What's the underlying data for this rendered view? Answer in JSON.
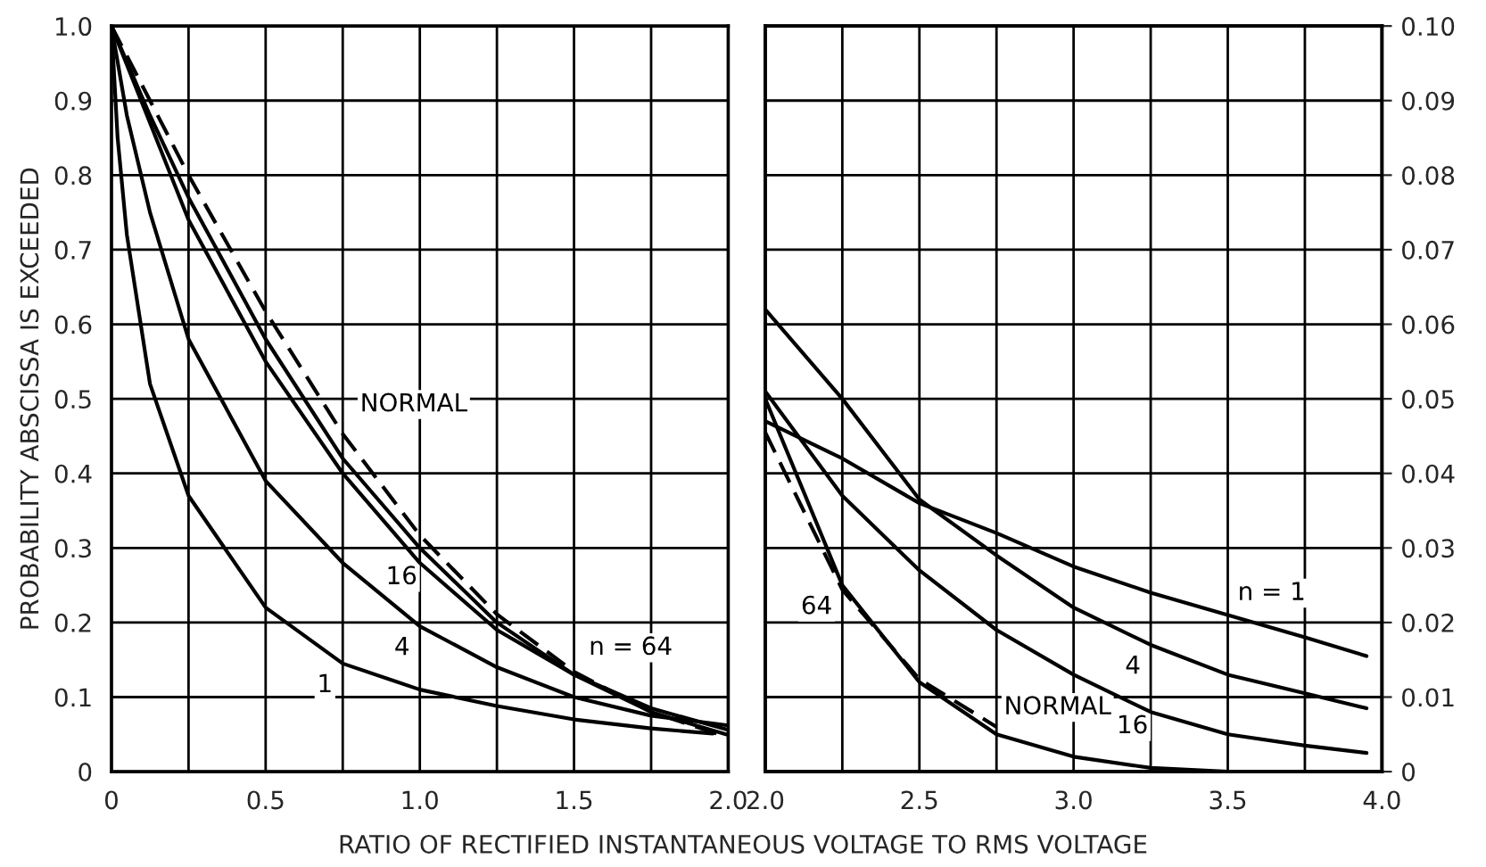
{
  "chart_data": [
    {
      "type": "line",
      "ylabel": "PROBABILITY ABSCISSA IS EXCEEDED",
      "xlabel": "RATIO OF RECTIFIED INSTANTANEOUS VOLTAGE TO RMS VOLTAGE",
      "xlim": [
        0,
        2
      ],
      "ylim": [
        0,
        1
      ],
      "xticks": [
        0,
        {
          "value": 0.25,
          "label": null
        },
        0.5,
        {
          "value": 0.75,
          "label": null
        },
        {
          "value": 1.0,
          "label": "1.0"
        },
        {
          "value": 1.25,
          "label": null
        },
        1.5,
        {
          "value": 1.75,
          "label": null
        },
        {
          "value": 2.0,
          "label": "2.0"
        }
      ],
      "yticks": [
        0,
        0.1,
        0.2,
        0.3,
        0.4,
        0.5,
        0.6,
        0.7,
        0.8,
        0.9,
        {
          "value": 1.0,
          "label": "1.0"
        }
      ],
      "grid": true,
      "series": [
        {
          "name": "1",
          "color": "#000000",
          "line_style": "solid",
          "x": [
            0,
            0.02,
            0.05,
            0.125,
            0.25,
            0.5,
            0.75,
            1.0,
            1.25,
            1.5,
            1.75,
            1.95
          ],
          "values": [
            1.0,
            0.85,
            0.72,
            0.52,
            0.37,
            0.22,
            0.145,
            0.11,
            0.088,
            0.07,
            0.058,
            0.051
          ]
        },
        {
          "name": "4",
          "color": "#000000",
          "line_style": "solid",
          "x": [
            0,
            0.05,
            0.125,
            0.25,
            0.5,
            0.75,
            1.0,
            1.25,
            1.5,
            1.75,
            2.0
          ],
          "values": [
            1.0,
            0.88,
            0.75,
            0.58,
            0.39,
            0.28,
            0.195,
            0.14,
            0.1,
            0.075,
            0.062
          ]
        },
        {
          "name": "16",
          "color": "#000000",
          "line_style": "solid",
          "x": [
            0,
            0.125,
            0.25,
            0.5,
            0.75,
            1.0,
            1.25,
            1.5,
            1.75,
            2.0
          ],
          "values": [
            1.0,
            0.87,
            0.74,
            0.55,
            0.4,
            0.28,
            0.19,
            0.13,
            0.085,
            0.056
          ]
        },
        {
          "name": "n = 64",
          "color": "#000000",
          "line_style": "solid",
          "x": [
            0,
            0.125,
            0.25,
            0.5,
            0.75,
            1.0,
            1.25,
            1.5,
            1.75,
            2.0
          ],
          "values": [
            1.0,
            0.88,
            0.77,
            0.58,
            0.42,
            0.3,
            0.2,
            0.13,
            0.08,
            0.049
          ]
        },
        {
          "name": "NORMAL",
          "color": "#000000",
          "line_style": "dashed",
          "x": [
            0,
            0.125,
            0.25,
            0.5,
            0.75,
            1.0,
            1.25,
            1.5,
            1.75,
            2.0
          ],
          "values": [
            1.0,
            0.9,
            0.8,
            0.617,
            0.453,
            0.317,
            0.211,
            0.134,
            0.08,
            0.046
          ]
        }
      ]
    },
    {
      "type": "line",
      "xlim": [
        2,
        4
      ],
      "y2lim": [
        0,
        0.1
      ],
      "xticks": [
        {
          "value": 2.0,
          "label": "2.0"
        },
        {
          "value": 2.25,
          "label": null
        },
        2.5,
        {
          "value": 2.75,
          "label": null
        },
        {
          "value": 3.0,
          "label": "3.0"
        },
        {
          "value": 3.25,
          "label": null
        },
        3.5,
        {
          "value": 3.75,
          "label": null
        },
        {
          "value": 4.0,
          "label": "4.0"
        }
      ],
      "y2ticks": [
        0,
        0.01,
        0.02,
        0.03,
        0.04,
        0.05,
        0.06,
        0.07,
        0.08,
        0.09,
        {
          "value": 0.1,
          "label": "0.10"
        }
      ],
      "grid": true,
      "series": [
        {
          "name": "n = 1",
          "axis": "y2",
          "color": "#000000",
          "line_style": "solid",
          "x": [
            2.0,
            2.25,
            2.5,
            2.75,
            3.0,
            3.25,
            3.5,
            3.75,
            3.95
          ],
          "values": [
            0.047,
            0.042,
            0.036,
            0.032,
            0.0275,
            0.024,
            0.021,
            0.018,
            0.0155
          ]
        },
        {
          "name": "4",
          "axis": "y2",
          "color": "#000000",
          "line_style": "solid",
          "x": [
            2.0,
            2.25,
            2.5,
            2.75,
            3.0,
            3.25,
            3.5,
            3.75,
            3.95
          ],
          "values": [
            0.062,
            0.05,
            0.0365,
            0.029,
            0.022,
            0.017,
            0.013,
            0.0105,
            0.0085
          ]
        },
        {
          "name": "16",
          "axis": "y2",
          "color": "#000000",
          "line_style": "solid",
          "x": [
            2.0,
            2.25,
            2.5,
            2.75,
            3.0,
            3.25,
            3.5,
            3.75,
            3.95
          ],
          "values": [
            0.051,
            0.037,
            0.027,
            0.019,
            0.013,
            0.008,
            0.005,
            0.0035,
            0.0025
          ]
        },
        {
          "name": "64",
          "axis": "y2",
          "color": "#000000",
          "line_style": "solid",
          "x": [
            2.0,
            2.25,
            2.5,
            2.75,
            3.0,
            3.25,
            3.5,
            3.75
          ],
          "values": [
            0.05,
            0.025,
            0.012,
            0.005,
            0.002,
            0.0005,
            0,
            0
          ]
        },
        {
          "name": "NORMAL",
          "axis": "y2",
          "color": "#000000",
          "line_style": "dashed",
          "x": [
            2.0,
            2.25,
            2.5,
            2.75
          ],
          "values": [
            0.0455,
            0.0244,
            0.0124,
            0.006
          ]
        }
      ]
    }
  ]
}
